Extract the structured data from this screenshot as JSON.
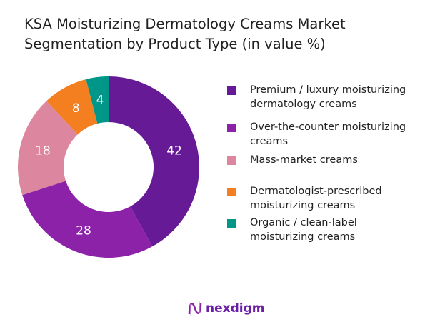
{
  "chart_data": {
    "type": "pie",
    "donut": true,
    "title": "KSA Moisturizing Dermatology Creams Market Segmentation by Product Type (in value %)",
    "categories": [
      "Premium / luxury moisturizing dermatology creams",
      "Over-the-counter moisturizing creams",
      "Mass-market creams",
      "Dermatologist-prescribed moisturizing creams",
      "Organic / clean-label moisturizing creams"
    ],
    "values": [
      42,
      28,
      18,
      8,
      4
    ],
    "colors": [
      "#671a96",
      "#8b22a8",
      "#dc879f",
      "#f47f20",
      "#009688"
    ],
    "legend_position": "right"
  },
  "brand": {
    "name": "nexdigm",
    "color": "#6a1fa6"
  }
}
